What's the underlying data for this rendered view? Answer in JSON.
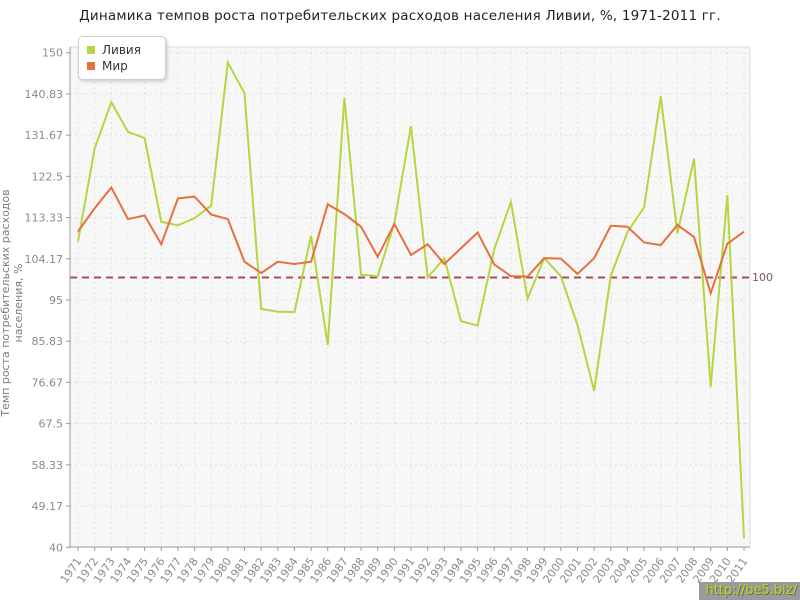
{
  "title": "Динамика темпов роста потребительских расходов населения Ливии, %, 1971-2011 гг.",
  "y_axis": {
    "label": "Темп роста потребительских расходов населения, %",
    "tick_labels": [
      "150",
      "140.83",
      "131.67",
      "122.5",
      "113.33",
      "104.17",
      "95",
      "85.83",
      "76.67",
      "67.5",
      "58.33",
      "49.17",
      "40"
    ]
  },
  "legend": {
    "items": [
      {
        "name": "Ливия",
        "color": "#b4d640"
      },
      {
        "name": "Мир",
        "color": "#e4713e"
      }
    ]
  },
  "reference_line": {
    "value": 100,
    "label": "100",
    "color": "#a34f55"
  },
  "watermark": {
    "text": "http://be5.biz/"
  },
  "colors": {
    "plot_background": "#f7f7f7",
    "grid_line": "#e2e2e2",
    "axis_line": "#999999",
    "tick_label": "#8a8a8a"
  },
  "chart_data": {
    "type": "line",
    "title": "Динамика темпов роста потребительских расходов населения Ливии, %, 1971-2011 гг.",
    "xlabel": "",
    "ylabel": "Темп роста потребительских расходов населения, %",
    "ylim": [
      40,
      150
    ],
    "grid": true,
    "legend_position": "top-left",
    "reference_line": 100,
    "x": [
      1971,
      1972,
      1973,
      1974,
      1975,
      1976,
      1977,
      1978,
      1979,
      1980,
      1981,
      1982,
      1983,
      1984,
      1985,
      1986,
      1987,
      1988,
      1989,
      1990,
      1991,
      1992,
      1993,
      1994,
      1995,
      1996,
      1997,
      1998,
      1999,
      2000,
      2001,
      2002,
      2003,
      2004,
      2005,
      2006,
      2007,
      2008,
      2009,
      2010,
      2011
    ],
    "series": [
      {
        "name": "Ливия",
        "color": "#b4d640",
        "values": [
          108,
          128.7,
          139,
          132.4,
          131,
          112.4,
          111.6,
          113.2,
          116,
          147.8,
          141,
          93,
          92.4,
          92.3,
          109.3,
          85,
          140,
          100.6,
          100.3,
          112.1,
          133.7,
          100,
          104.3,
          90.3,
          89.3,
          106.3,
          116.8,
          95.3,
          104.3,
          100.3,
          89.4,
          74.8,
          100.4,
          110.1,
          115.6,
          140.3,
          109.8,
          126.4,
          75.7,
          118.3,
          42
        ]
      },
      {
        "name": "Мир",
        "color": "#e4713e",
        "values": [
          110.2,
          115.4,
          120,
          113,
          113.8,
          107.4,
          117.6,
          118,
          114,
          113,
          103.5,
          101,
          103.5,
          103,
          103.5,
          116.3,
          114.1,
          111.3,
          104.6,
          111.9,
          105,
          107.4,
          103,
          106.5,
          110,
          102.9,
          100.3,
          100.2,
          104.3,
          104.2,
          100.8,
          104.3,
          111.5,
          111.3,
          107.8,
          107.2,
          111.7,
          109,
          96.5,
          107.5,
          110.2
        ]
      }
    ]
  }
}
